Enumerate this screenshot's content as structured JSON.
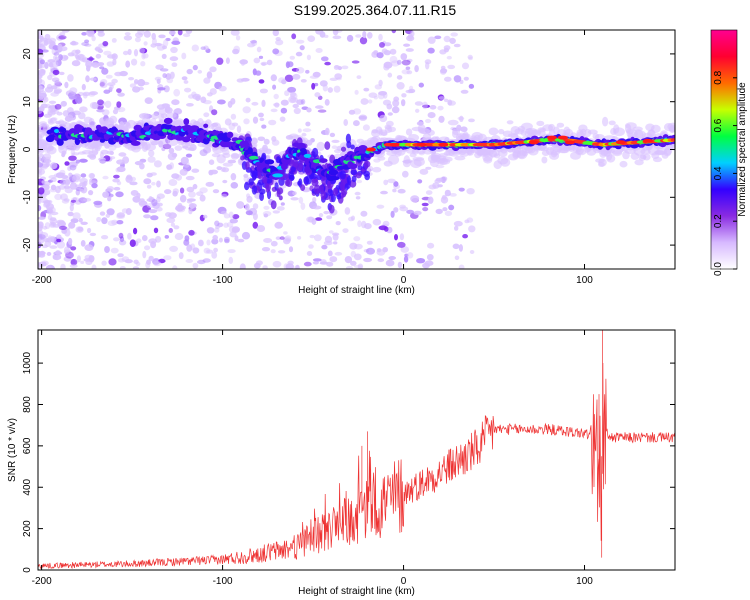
{
  "title": "S199.2025.364.07.11.R15",
  "chart_data": [
    {
      "type": "heatmap",
      "xlabel": "Height of straight line (km)",
      "ylabel": "Frequency (Hz)",
      "xlim": [
        -202,
        150
      ],
      "ylim": [
        -25,
        25
      ],
      "x_ticks": [
        -200,
        -100,
        0,
        100
      ],
      "y_ticks": [
        -20,
        -10,
        0,
        10,
        20
      ],
      "colorbar": {
        "label": "Normalized spectral amplitude",
        "range": [
          0,
          1
        ],
        "ticks": [
          "0.0",
          "0.2",
          "0.4",
          "0.6",
          "0.8"
        ],
        "tick_values": [
          0,
          0.2,
          0.4,
          0.6,
          0.8
        ],
        "colors": [
          "#ffffff",
          "#d7b9ff",
          "#8a2be2",
          "#3300ff",
          "#00d0ff",
          "#00ff40",
          "#c8ff00",
          "#ff6a00",
          "#ff0030",
          "#ff0090"
        ]
      },
      "ridge": {
        "x": [
          -190,
          -170,
          -150,
          -130,
          -110,
          -90,
          -80,
          -70,
          -60,
          -50,
          -40,
          -30,
          -20,
          -10,
          0,
          20,
          50,
          80,
          90,
          110,
          150
        ],
        "freq": [
          3,
          3,
          3,
          4,
          3,
          1,
          -3,
          -5,
          0,
          -3,
          -5,
          -2,
          -1,
          1,
          1,
          1,
          1,
          2,
          2,
          1,
          2
        ]
      }
    },
    {
      "type": "line",
      "xlabel": "Height of straight line (km)",
      "ylabel": "SNR (10 * v/v)",
      "xlim": [
        -202,
        150
      ],
      "ylim": [
        0,
        1160
      ],
      "x_ticks": [
        -200,
        -100,
        0,
        100
      ],
      "y_ticks": [
        0,
        200,
        400,
        600,
        800,
        1000
      ],
      "color": "#ee3333",
      "trend": {
        "x": [
          -202,
          -150,
          -100,
          -80,
          -60,
          -40,
          -20,
          0,
          20,
          40,
          50,
          80,
          100,
          106,
          109,
          110,
          112,
          115,
          150
        ],
        "y": [
          20,
          30,
          50,
          75,
          110,
          200,
          290,
          370,
          470,
          580,
          680,
          680,
          660,
          640,
          400,
          700,
          660,
          640,
          640
        ]
      },
      "spikes": [
        {
          "x": -20,
          "y": 670
        },
        {
          "x": -23,
          "y": 600
        },
        {
          "x": 108,
          "y": 850
        },
        {
          "x": 110,
          "y": 1160
        },
        {
          "x": 109.5,
          "y": 60
        }
      ]
    }
  ]
}
